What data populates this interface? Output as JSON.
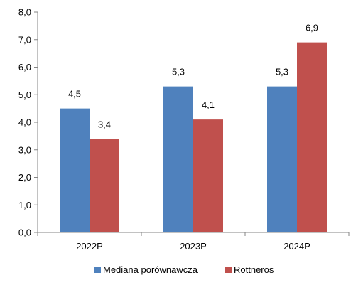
{
  "chart_data": {
    "type": "bar",
    "categories": [
      "2022P",
      "2023P",
      "2024P"
    ],
    "series": [
      {
        "name": "Mediana porównawcza",
        "values": [
          4.5,
          5.3,
          5.3
        ],
        "labels": [
          "4,5",
          "5,3",
          "5,3"
        ],
        "color": "#4F81BD"
      },
      {
        "name": "Rottneros",
        "values": [
          3.4,
          4.1,
          6.9
        ],
        "labels": [
          "3,4",
          "4,1",
          "6,9"
        ],
        "color": "#C0504D"
      }
    ],
    "ylim": [
      0,
      8
    ],
    "yticks": [
      "0,0",
      "1,0",
      "2,0",
      "3,0",
      "4,0",
      "5,0",
      "6,0",
      "7,0",
      "8,0"
    ],
    "grid": false,
    "legend": "bottom-center",
    "title": "",
    "xlabel": "",
    "ylabel": ""
  }
}
